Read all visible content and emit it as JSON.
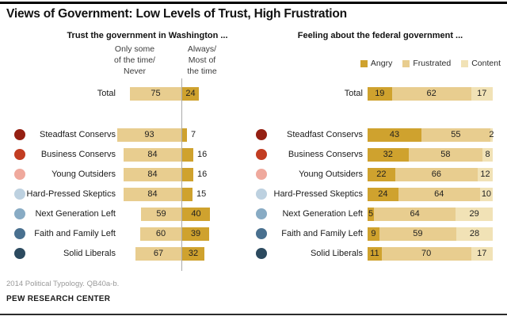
{
  "title": "Views of Government: Low Levels of Trust, High Frustration",
  "footer": {
    "source": "2014 Political Typology. QB40a-b.",
    "brand": "PEW RESEARCH CENTER"
  },
  "colors": {
    "gold": "#CFA22E",
    "tan": "#E8CD8F",
    "light": "#F1E2B6",
    "divider": "#AAAAAA"
  },
  "category_dot_colors": [
    null,
    "#952013",
    "#C23D22",
    "#EFA99D",
    "#BDD1E0",
    "#88ABC4",
    "#49708F",
    "#2C4A5F"
  ],
  "chart_data": [
    {
      "type": "bar",
      "orientation": "horizontal",
      "title": "Trust the government in Washington ...",
      "categories": [
        "Total",
        "Steadfast Conservs",
        "Business Conservs",
        "Young Outsiders",
        "Hard-Pressed Skeptics",
        "Next Generation Left",
        "Faith and Family Left",
        "Solid Liberals"
      ],
      "column_headers": [
        "Only some\nof the time/\nNever",
        "Always/\nMost of\nthe time"
      ],
      "series": [
        {
          "name": "Only some of the time/Never",
          "color": "#E8CD8F",
          "values": [
            75,
            93,
            84,
            84,
            84,
            59,
            60,
            67
          ]
        },
        {
          "name": "Always/Most of the time",
          "color": "#CFA22E",
          "values": [
            24,
            7,
            16,
            16,
            15,
            40,
            39,
            32
          ]
        }
      ],
      "xlim": [
        0,
        100
      ],
      "grid": false
    },
    {
      "type": "bar",
      "orientation": "horizontal",
      "stacked": true,
      "title": "Feeling about the federal government ...",
      "categories": [
        "Total",
        "Steadfast Conservs",
        "Business Conservs",
        "Young Outsiders",
        "Hard-Pressed Skeptics",
        "Next Generation Left",
        "Faith and Family Left",
        "Solid Liberals"
      ],
      "series": [
        {
          "name": "Angry",
          "color": "#CFA22E",
          "values": [
            19,
            43,
            32,
            22,
            24,
            5,
            9,
            11
          ]
        },
        {
          "name": "Frustrated",
          "color": "#E8CD8F",
          "values": [
            62,
            55,
            58,
            66,
            64,
            64,
            59,
            70
          ]
        },
        {
          "name": "Content",
          "color": "#F1E2B6",
          "values": [
            17,
            2,
            8,
            12,
            10,
            29,
            28,
            17
          ]
        }
      ],
      "legend_position": "top-right",
      "grid": false
    }
  ]
}
